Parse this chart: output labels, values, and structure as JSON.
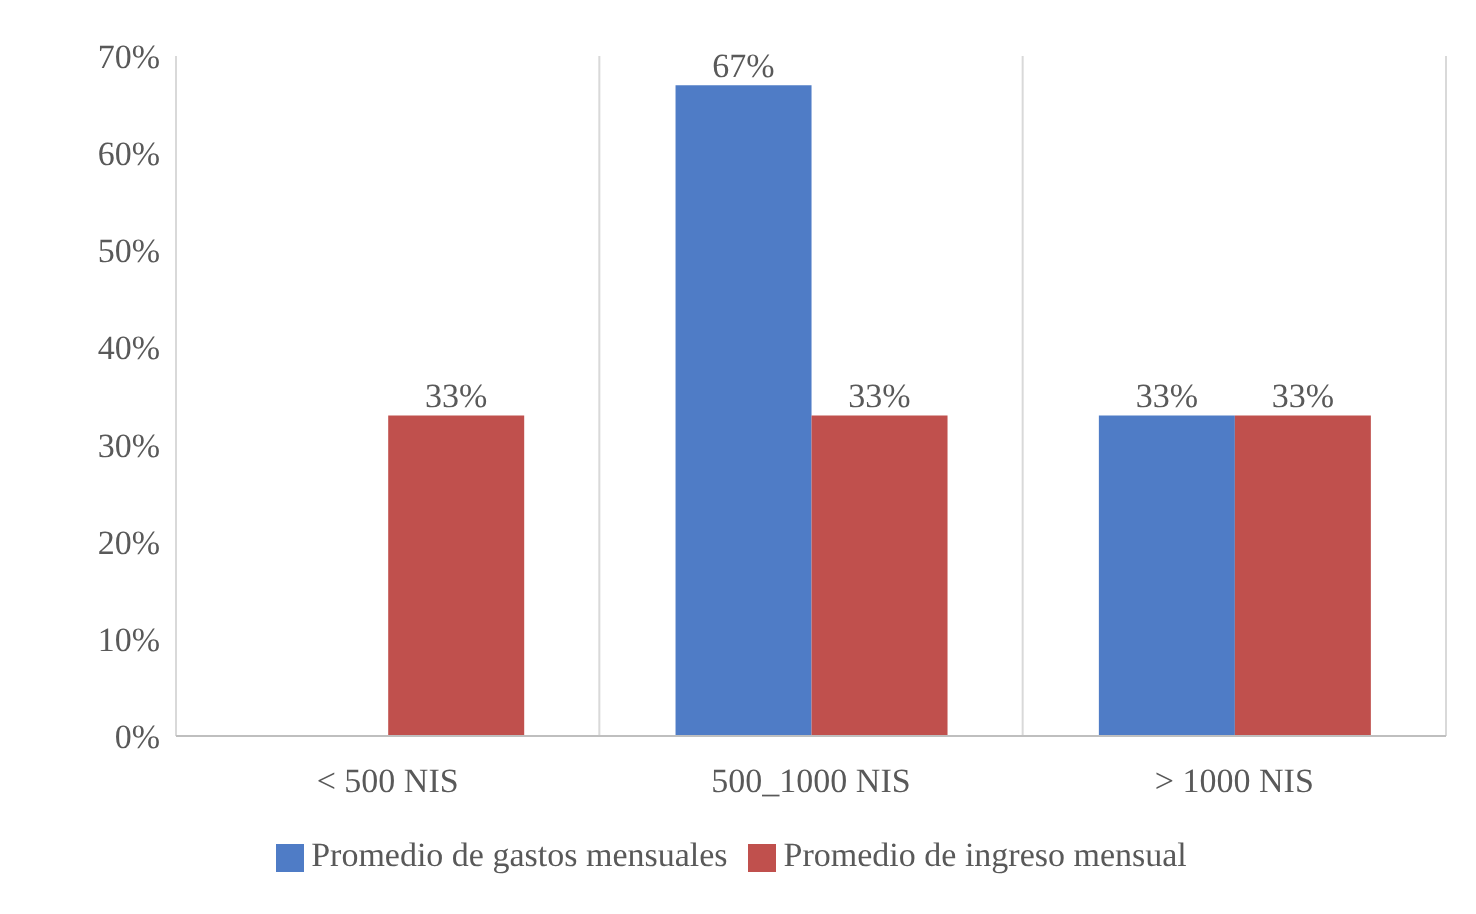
{
  "chart_data": {
    "type": "bar",
    "categories": [
      "< 500 NIS",
      "500_1000 NIS",
      "> 1000 NIS"
    ],
    "series": [
      {
        "name": "Promedio de gastos mensuales",
        "color": "#4f7cc6",
        "values": [
          null,
          67,
          33
        ],
        "value_labels": [
          null,
          "67%",
          "33%"
        ]
      },
      {
        "name": "Promedio de ingreso mensual",
        "color": "#c0504d",
        "values": [
          33,
          33,
          33
        ],
        "value_labels": [
          "33%",
          "33%",
          "33%"
        ]
      }
    ],
    "ylim": [
      0,
      70
    ],
    "yticks": [
      {
        "value": 0,
        "label": "0%"
      },
      {
        "value": 10,
        "label": "10%"
      },
      {
        "value": 20,
        "label": "20%"
      },
      {
        "value": 30,
        "label": "30%"
      },
      {
        "value": 40,
        "label": "40%"
      },
      {
        "value": 50,
        "label": "50%"
      },
      {
        "value": 60,
        "label": "60%"
      },
      {
        "value": 70,
        "label": "70%"
      }
    ],
    "grid": "x",
    "legend": "bottom"
  }
}
